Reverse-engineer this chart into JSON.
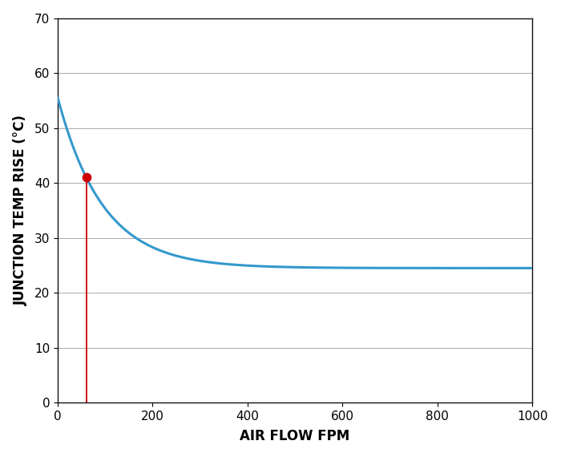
{
  "title": "",
  "xlabel": "AIR FLOW FPM",
  "ylabel": "JUNCTION TEMP RISE (°C)",
  "xlim": [
    0,
    1000
  ],
  "ylim": [
    0,
    70
  ],
  "xticks": [
    0,
    200,
    400,
    600,
    800,
    1000
  ],
  "yticks": [
    0,
    10,
    20,
    30,
    40,
    50,
    60,
    70
  ],
  "curve_color": "#3399CC",
  "curve_linewidth": 2.2,
  "red_line_x": 60,
  "red_line_color": "#CC0000",
  "red_dot_x": 60,
  "red_dot_y": 41,
  "red_dot_color": "#CC0000",
  "red_dot_size": 55,
  "grid_color": "#aaaaaa",
  "grid_linewidth": 0.7,
  "bg_color": "#ffffff",
  "axis_label_fontsize": 12,
  "tick_fontsize": 11,
  "curve_A": 31.0,
  "curve_B": 0.006,
  "curve_C": 24.5,
  "figsize": [
    7.0,
    5.7
  ],
  "dpi": 100
}
